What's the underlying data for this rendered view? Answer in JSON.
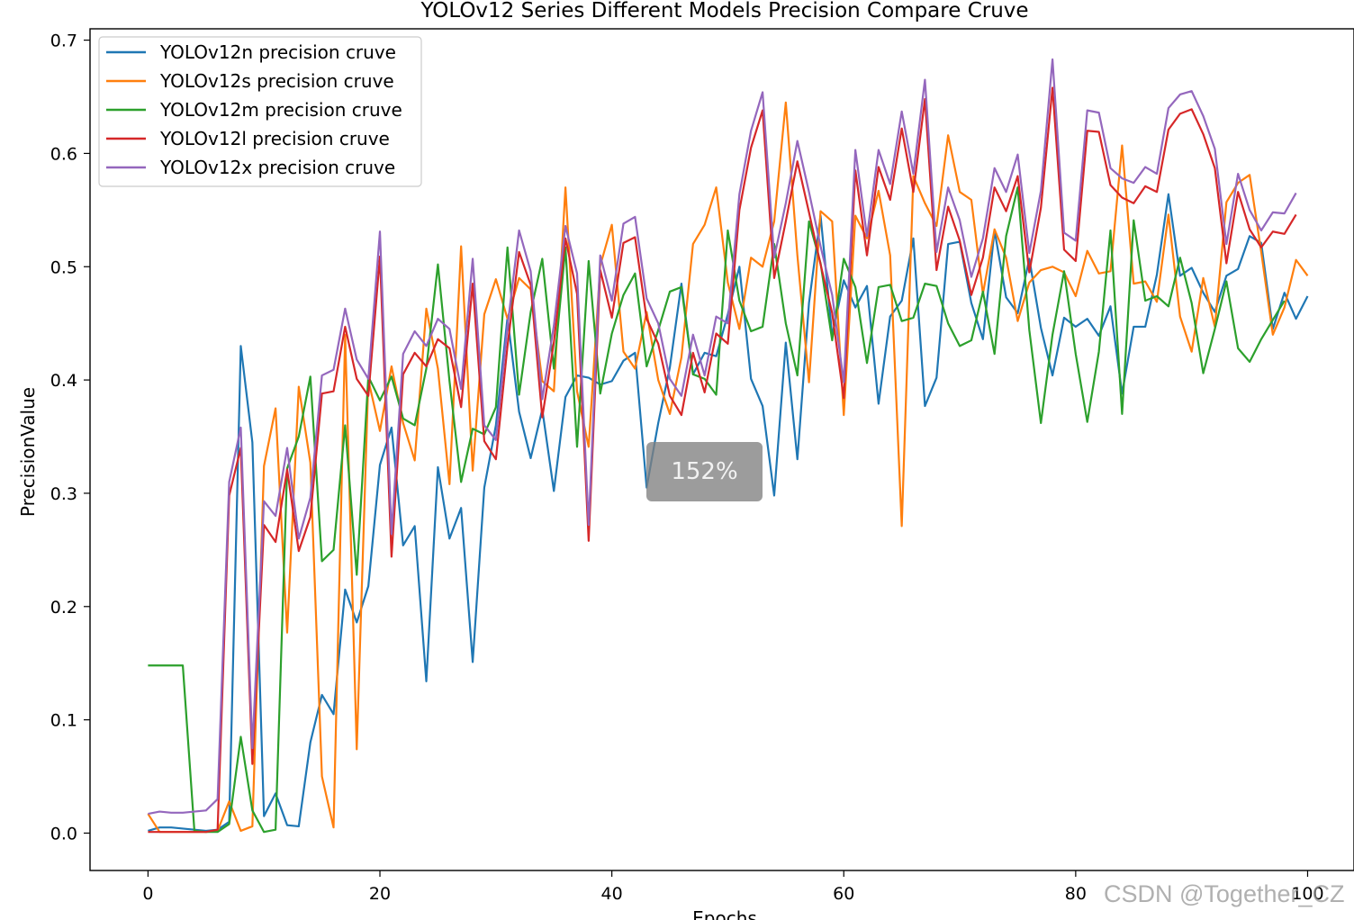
{
  "chart_data": {
    "type": "line",
    "title": "YOLOv12 Series Different Models Precision Compare Cruve",
    "xlabel": "Epochs",
    "ylabel": "PrecisionValue",
    "xlim": [
      -5,
      104
    ],
    "ylim": [
      -0.033,
      0.71
    ],
    "xticks": [
      0,
      20,
      40,
      60,
      80,
      100
    ],
    "yticks": [
      0.0,
      0.1,
      0.2,
      0.3,
      0.4,
      0.5,
      0.6,
      0.7
    ],
    "ytick_labels": [
      "0.0",
      "0.1",
      "0.2",
      "0.3",
      "0.4",
      "0.5",
      "0.6",
      "0.7"
    ],
    "grid": false,
    "legend_position": "upper-left",
    "series": [
      {
        "name": "YOLOv12n precision cruve",
        "color": "#1f77b4",
        "values": [
          0.002,
          0.005,
          0.005,
          0.004,
          0.003,
          0.002,
          0.003,
          0.01,
          0.43,
          0.345,
          0.015,
          0.035,
          0.007,
          0.006,
          0.08,
          0.122,
          0.105,
          0.215,
          0.186,
          0.218,
          0.325,
          0.358,
          0.254,
          0.271,
          0.134,
          0.323,
          0.26,
          0.287,
          0.151,
          0.305,
          0.36,
          0.455,
          0.372,
          0.331,
          0.374,
          0.302,
          0.385,
          0.404,
          0.402,
          0.396,
          0.399,
          0.417,
          0.424,
          0.305,
          0.362,
          0.411,
          0.485,
          0.405,
          0.424,
          0.421,
          0.458,
          0.5,
          0.401,
          0.377,
          0.298,
          0.433,
          0.33,
          0.468,
          0.545,
          0.439,
          0.488,
          0.464,
          0.483,
          0.379,
          0.456,
          0.47,
          0.525,
          0.377,
          0.402,
          0.52,
          0.522,
          0.468,
          0.436,
          0.532,
          0.473,
          0.459,
          0.507,
          0.446,
          0.404,
          0.455,
          0.447,
          0.454,
          0.439,
          0.465,
          0.388,
          0.447,
          0.447,
          0.493,
          0.564,
          0.492,
          0.499,
          0.477,
          0.46,
          0.492,
          0.498,
          0.527,
          0.521,
          0.445,
          0.477,
          0.454,
          0.474
        ]
      },
      {
        "name": "YOLOv12s precision cruve",
        "color": "#ff7f0e",
        "values": [
          0.017,
          0.001,
          0.001,
          0.001,
          0.001,
          0.001,
          0.002,
          0.028,
          0.002,
          0.006,
          0.324,
          0.375,
          0.177,
          0.394,
          0.327,
          0.05,
          0.005,
          0.44,
          0.074,
          0.4,
          0.355,
          0.412,
          0.362,
          0.329,
          0.463,
          0.41,
          0.308,
          0.518,
          0.32,
          0.458,
          0.489,
          0.454,
          0.49,
          0.48,
          0.399,
          0.39,
          0.57,
          0.39,
          0.341,
          0.501,
          0.537,
          0.425,
          0.41,
          0.46,
          0.4,
          0.37,
          0.42,
          0.52,
          0.537,
          0.57,
          0.486,
          0.445,
          0.508,
          0.5,
          0.54,
          0.645,
          0.51,
          0.398,
          0.549,
          0.54,
          0.369,
          0.545,
          0.525,
          0.567,
          0.51,
          0.271,
          0.58,
          0.556,
          0.536,
          0.616,
          0.566,
          0.559,
          0.476,
          0.533,
          0.508,
          0.452,
          0.486,
          0.497,
          0.5,
          0.495,
          0.474,
          0.514,
          0.494,
          0.496,
          0.607,
          0.485,
          0.487,
          0.469,
          0.546,
          0.456,
          0.425,
          0.49,
          0.447,
          0.557,
          0.574,
          0.581,
          0.513,
          0.44,
          0.464,
          0.506,
          0.492
        ]
      },
      {
        "name": "YOLOv12m precision cruve",
        "color": "#2ca02c",
        "values": [
          0.148,
          0.148,
          0.148,
          0.148,
          0.002,
          0.001,
          0.001,
          0.008,
          0.085,
          0.02,
          0.001,
          0.003,
          0.322,
          0.35,
          0.403,
          0.24,
          0.25,
          0.36,
          0.228,
          0.403,
          0.382,
          0.403,
          0.366,
          0.36,
          0.41,
          0.502,
          0.399,
          0.31,
          0.357,
          0.352,
          0.376,
          0.517,
          0.387,
          0.46,
          0.507,
          0.41,
          0.517,
          0.341,
          0.505,
          0.388,
          0.441,
          0.475,
          0.494,
          0.412,
          0.444,
          0.478,
          0.482,
          0.405,
          0.401,
          0.387,
          0.532,
          0.47,
          0.443,
          0.447,
          0.52,
          0.45,
          0.404,
          0.54,
          0.503,
          0.435,
          0.507,
          0.482,
          0.415,
          0.482,
          0.484,
          0.452,
          0.455,
          0.485,
          0.483,
          0.45,
          0.43,
          0.435,
          0.478,
          0.423,
          0.527,
          0.57,
          0.444,
          0.362,
          0.44,
          0.496,
          0.423,
          0.363,
          0.425,
          0.532,
          0.37,
          0.541,
          0.47,
          0.474,
          0.465,
          0.508,
          0.468,
          0.406,
          0.445,
          0.487,
          0.428,
          0.416,
          0.436,
          0.453,
          0.47
        ]
      },
      {
        "name": "YOLOv12l precision cruve",
        "color": "#d62728",
        "values": [
          0.001,
          0.001,
          0.001,
          0.001,
          0.001,
          0.001,
          0.003,
          0.298,
          0.34,
          0.061,
          0.272,
          0.257,
          0.321,
          0.249,
          0.279,
          0.388,
          0.39,
          0.447,
          0.401,
          0.386,
          0.509,
          0.244,
          0.405,
          0.424,
          0.412,
          0.436,
          0.428,
          0.376,
          0.485,
          0.346,
          0.33,
          0.43,
          0.513,
          0.484,
          0.367,
          0.433,
          0.525,
          0.476,
          0.258,
          0.497,
          0.455,
          0.521,
          0.526,
          0.454,
          0.432,
          0.386,
          0.369,
          0.424,
          0.389,
          0.441,
          0.432,
          0.55,
          0.605,
          0.638,
          0.49,
          0.54,
          0.593,
          0.548,
          0.502,
          0.459,
          0.384,
          0.585,
          0.51,
          0.588,
          0.559,
          0.622,
          0.566,
          0.648,
          0.497,
          0.553,
          0.523,
          0.475,
          0.508,
          0.57,
          0.549,
          0.58,
          0.495,
          0.552,
          0.658,
          0.515,
          0.505,
          0.62,
          0.619,
          0.572,
          0.561,
          0.556,
          0.571,
          0.566,
          0.621,
          0.635,
          0.639,
          0.617,
          0.587,
          0.503,
          0.566,
          0.533,
          0.517,
          0.531,
          0.529,
          0.546
        ]
      },
      {
        "name": "YOLOv12x precision cruve",
        "color": "#9467bd",
        "values": [
          0.017,
          0.019,
          0.018,
          0.018,
          0.019,
          0.02,
          0.03,
          0.31,
          0.358,
          0.075,
          0.293,
          0.28,
          0.34,
          0.26,
          0.296,
          0.404,
          0.409,
          0.463,
          0.418,
          0.401,
          0.531,
          0.264,
          0.423,
          0.443,
          0.43,
          0.454,
          0.445,
          0.392,
          0.507,
          0.36,
          0.347,
          0.447,
          0.532,
          0.496,
          0.383,
          0.448,
          0.536,
          0.494,
          0.272,
          0.51,
          0.47,
          0.538,
          0.544,
          0.472,
          0.45,
          0.401,
          0.386,
          0.44,
          0.404,
          0.456,
          0.45,
          0.564,
          0.62,
          0.654,
          0.508,
          0.556,
          0.611,
          0.566,
          0.518,
          0.475,
          0.398,
          0.603,
          0.527,
          0.603,
          0.573,
          0.637,
          0.582,
          0.665,
          0.513,
          0.57,
          0.541,
          0.491,
          0.525,
          0.587,
          0.566,
          0.599,
          0.512,
          0.567,
          0.683,
          0.53,
          0.523,
          0.638,
          0.636,
          0.587,
          0.578,
          0.574,
          0.588,
          0.582,
          0.64,
          0.652,
          0.655,
          0.633,
          0.604,
          0.52,
          0.582,
          0.55,
          0.532,
          0.548,
          0.547,
          0.565
        ]
      }
    ]
  },
  "overlay": {
    "zoom_label": "152%",
    "watermark": "CSDN @Together_CZ"
  }
}
